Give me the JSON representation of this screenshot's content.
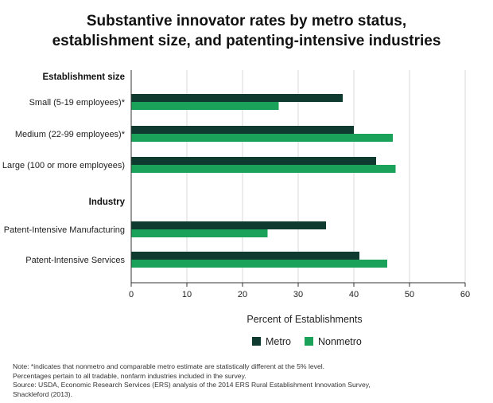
{
  "header": {
    "title_line1": "Substantive innovator rates by metro status,",
    "title_line2": "establishment size, and patenting-intensive industries"
  },
  "colors": {
    "metro": "#0e3a2f",
    "nonmetro": "#1aa25a",
    "axis": "#333333",
    "grid": "#d9d9d9"
  },
  "chart_data": {
    "type": "bar",
    "orientation": "horizontal",
    "title": "Substantive innovator rates by metro status, establishment size, and patenting-intensive industries",
    "xlabel": "Percent of Establishments",
    "ylabel": "",
    "xlim": [
      0,
      60
    ],
    "xticks": [
      0,
      10,
      20,
      30,
      40,
      50,
      60
    ],
    "grid": true,
    "legend_position": "bottom",
    "groups": [
      {
        "header": "Establishment size",
        "categories": [
          "Small (5-19 employees)*",
          "Medium (22-99 employees)*",
          "Large (100 or more employees)"
        ]
      },
      {
        "header": "Industry",
        "categories": [
          "Patent-Intensive Manufacturing",
          "Patent-Intensive Services"
        ]
      }
    ],
    "categories": [
      "Small (5-19 employees)*",
      "Medium (22-99 employees)*",
      "Large (100 or more employees)",
      "Patent-Intensive Manufacturing",
      "Patent-Intensive Services"
    ],
    "series": [
      {
        "name": "Metro",
        "values": [
          38,
          40,
          44,
          35,
          41
        ]
      },
      {
        "name": "Nonmetro",
        "values": [
          26.5,
          47,
          47.5,
          24.5,
          46
        ]
      }
    ]
  },
  "note": {
    "line1": "Note: *indicates that nonmetro and comparable metro estimate are statistically different at the 5% level.",
    "line2": "Percentages pertain to all tradable, nonfarm industries included in the survey.",
    "line3": "Source: USDA, Economic Research Services (ERS) analysis of the 2014 ERS Rural Establishment Innovation Survey,",
    "line4": "Shackleford (2013)."
  }
}
